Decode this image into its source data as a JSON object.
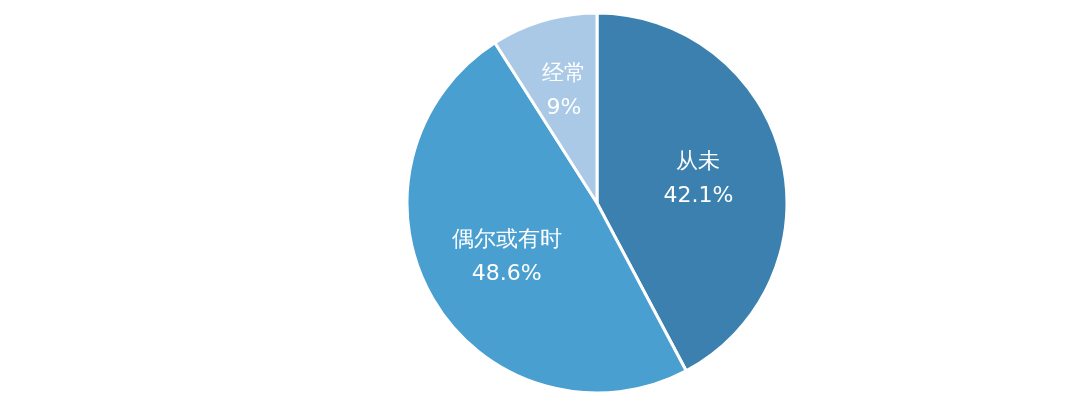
{
  "chart_data": {
    "type": "pie",
    "categories": [
      "从未",
      "偶尔或有时",
      "经常"
    ],
    "values": [
      42.1,
      48.6,
      9
    ],
    "colors": [
      "#3b80ae",
      "#4a9fd1",
      "#a9c9e6"
    ],
    "value_labels": [
      "42.1%",
      "48.6%",
      "9%"
    ]
  }
}
